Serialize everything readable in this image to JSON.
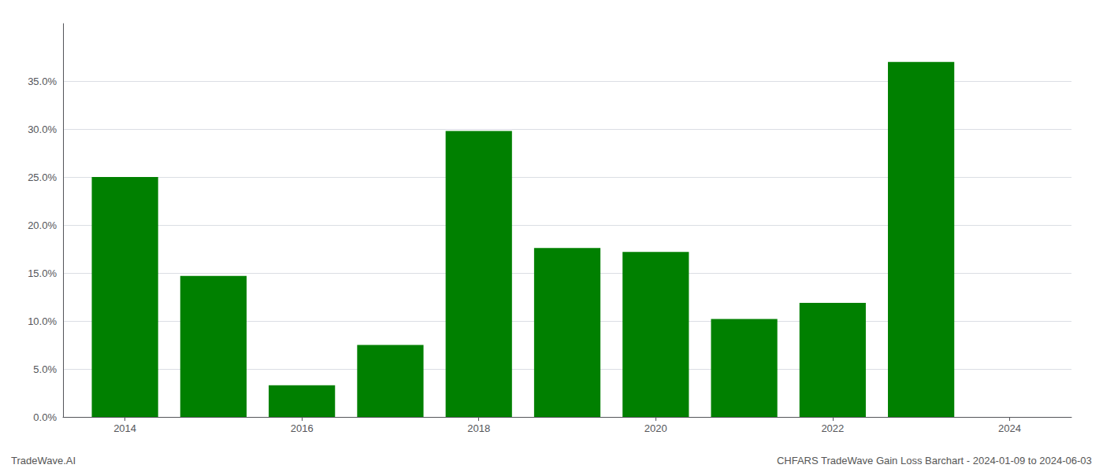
{
  "chart_data": {
    "type": "bar",
    "x": [
      2014,
      2015,
      2016,
      2017,
      2018,
      2019,
      2020,
      2021,
      2022,
      2023
    ],
    "values": [
      0.25,
      0.147,
      0.033,
      0.075,
      0.298,
      0.176,
      0.172,
      0.102,
      0.119,
      0.37
    ],
    "color": "#008000",
    "xlim": [
      2013.3,
      2024.7
    ],
    "xticks": [
      2014,
      2016,
      2018,
      2020,
      2022,
      2024
    ],
    "ylim": [
      0,
      0.41
    ],
    "yticks": [
      {
        "value": 0.0,
        "label": "0.0%"
      },
      {
        "value": 0.05,
        "label": "5.0%"
      },
      {
        "value": 0.1,
        "label": "10.0%"
      },
      {
        "value": 0.15,
        "label": "15.0%"
      },
      {
        "value": 0.2,
        "label": "20.0%"
      },
      {
        "value": 0.25,
        "label": "25.0%"
      },
      {
        "value": 0.3,
        "label": "30.0%"
      },
      {
        "value": 0.35,
        "label": "35.0%"
      }
    ],
    "grid": true,
    "annotations": [
      "TradeWave.AI",
      "CHFARS TradeWave Gain Loss Barchart - 2024-01-09 to 2024-06-03"
    ]
  }
}
